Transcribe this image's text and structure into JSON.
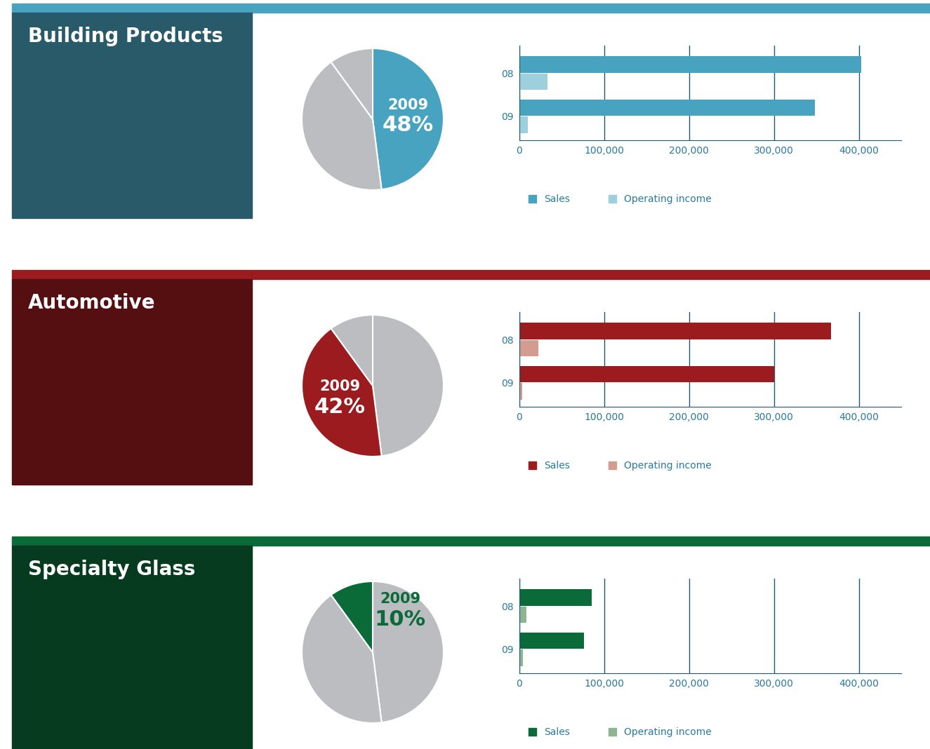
{
  "chart_data": [
    {
      "type": "pie",
      "title": "Building Products",
      "annotation": "2009",
      "values": [
        48,
        42,
        10
      ],
      "value_labels": [
        "48%",
        null,
        null
      ],
      "colors": [
        "#48a3c0",
        "#bcbdc0",
        "#bcbdc0"
      ]
    },
    {
      "type": "bar",
      "orientation": "horizontal",
      "categories": [
        "08",
        "09"
      ],
      "series": [
        {
          "name": "Sales",
          "color": "#48a3c0",
          "values": [
            403000,
            348000
          ]
        },
        {
          "name": "Operating income",
          "color": "#9dcfdc",
          "values": [
            33000,
            10000
          ]
        }
      ],
      "xlim": [
        0,
        450000
      ],
      "xticks": [
        0,
        {
          "value": 100000,
          "label": "100,000"
        },
        {
          "value": 200000,
          "label": "200,000"
        },
        {
          "value": 300000,
          "label": "300,000"
        },
        {
          "value": 400000,
          "label": "400,000"
        }
      ],
      "grid": true,
      "legend": "lower left"
    },
    {
      "type": "pie",
      "title": "Automotive",
      "annotation": "2009",
      "values": [
        48,
        42,
        10
      ],
      "value_labels": [
        null,
        "42%",
        null
      ],
      "colors": [
        "#bcbdc0",
        "#9b1b1f",
        "#bcbdc0"
      ]
    },
    {
      "type": "bar",
      "orientation": "horizontal",
      "categories": [
        "08",
        "09"
      ],
      "series": [
        {
          "name": "Sales",
          "color": "#9b1b1f",
          "values": [
            367000,
            300000
          ]
        },
        {
          "name": "Operating income",
          "color": "#d49c8e",
          "values": [
            22000,
            3000
          ]
        }
      ],
      "xlim": [
        0,
        450000
      ],
      "xticks": [
        0,
        {
          "value": 100000,
          "label": "100,000"
        },
        {
          "value": 200000,
          "label": "200,000"
        },
        {
          "value": 300000,
          "label": "300,000"
        },
        {
          "value": 400000,
          "label": "400,000"
        }
      ],
      "grid": true,
      "legend": "lower left"
    },
    {
      "type": "pie",
      "title": "Specialty Glass",
      "annotation": "2009",
      "values": [
        48,
        42,
        10
      ],
      "value_labels": [
        null,
        null,
        "10%"
      ],
      "colors": [
        "#bcbdc0",
        "#bcbdc0",
        "#0a6b38"
      ]
    },
    {
      "type": "bar",
      "orientation": "horizontal",
      "categories": [
        "08",
        "09"
      ],
      "series": [
        {
          "name": "Sales",
          "color": "#0a6b38",
          "values": [
            85000,
            76000
          ]
        },
        {
          "name": "Operating income",
          "color": "#8db593",
          "values": [
            8000,
            4000
          ]
        }
      ],
      "xlim": [
        0,
        450000
      ],
      "xticks": [
        0,
        {
          "value": 100000,
          "label": "100,000"
        },
        {
          "value": 200000,
          "label": "200,000"
        },
        {
          "value": 300000,
          "label": "300,000"
        },
        {
          "value": 400000,
          "label": "400,000"
        }
      ],
      "grid": true,
      "legend": "lower left"
    }
  ]
}
